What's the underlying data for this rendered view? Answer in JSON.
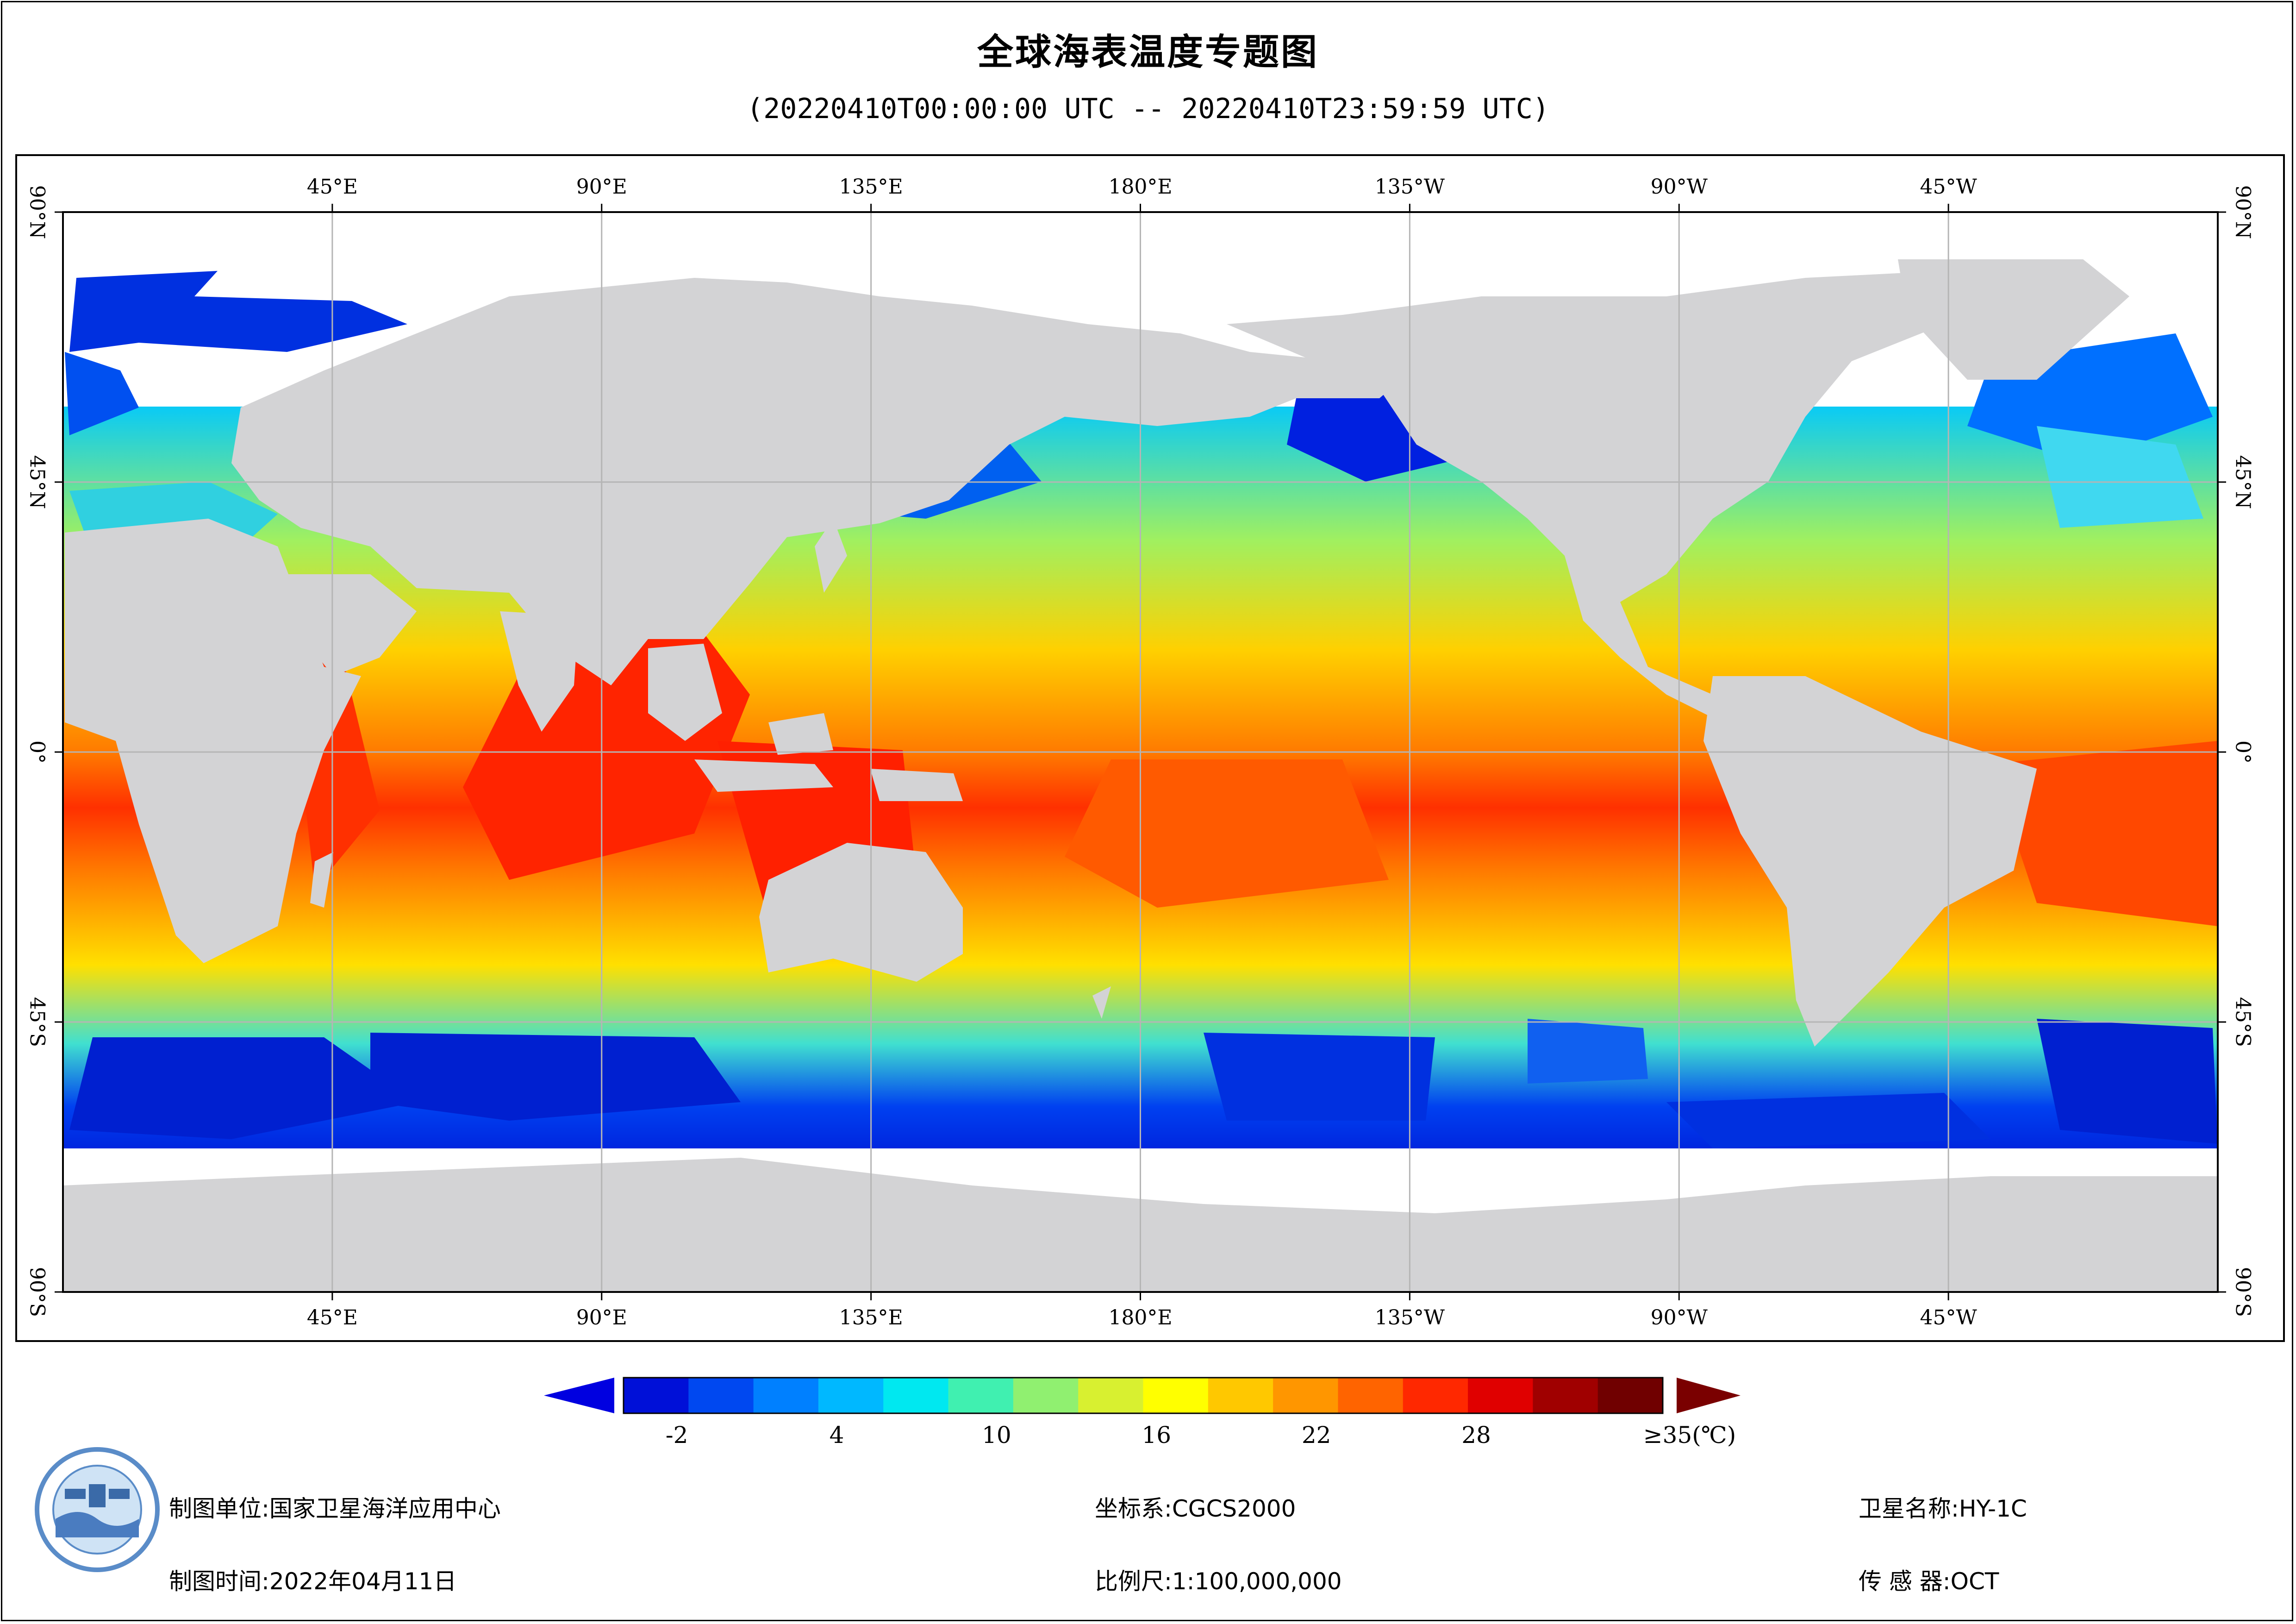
{
  "title": "全球海表温度专题图",
  "subtitle": "(20220410T00:00:00 UTC -- 20220410T23:59:59 UTC)",
  "axes": {
    "top_lon": [
      "45°E",
      "90°E",
      "135°E",
      "180°E",
      "135°W",
      "90°W",
      "45°W"
    ],
    "bottom_lon": [
      "45°E",
      "90°E",
      "135°E",
      "180°E",
      "135°W",
      "90°W",
      "45°W"
    ],
    "left_lat": [
      "90°N",
      "45°N",
      "0°",
      "45°S",
      "90°S"
    ],
    "right_lat": [
      "90°N",
      "45°N",
      "0°",
      "45°S",
      "90°S"
    ]
  },
  "colorbar": {
    "min": -4,
    "max": 35,
    "tick_values": [
      -2,
      4,
      10,
      16,
      22,
      28,
      35
    ],
    "tick_labels": [
      "-2",
      "4",
      "10",
      "16",
      "22",
      "28",
      "≥35(℃)"
    ],
    "colors": [
      "#0010d8",
      "#0048f0",
      "#0080ff",
      "#00b8ff",
      "#00e8f0",
      "#40f0b0",
      "#90f070",
      "#d8f030",
      "#ffff00",
      "#ffc800",
      "#ff9600",
      "#ff6400",
      "#ff2800",
      "#e00000",
      "#a00000",
      "#700000"
    ],
    "under_color": "#0000e0",
    "over_color": "#7a0000"
  },
  "footer": {
    "unit": "制图单位:国家卫星海洋应用中心",
    "date": "制图时间:2022年04月11日",
    "crs": "坐标系:CGCS2000",
    "scale": "比例尺:1:100,000,000",
    "satellite": "卫星名称:HY-1C",
    "sensor": "传 感 器:OCT"
  },
  "colors": {
    "land": "#d3d3d5",
    "grid": "#b5b5b5",
    "background": "#ffffff"
  }
}
